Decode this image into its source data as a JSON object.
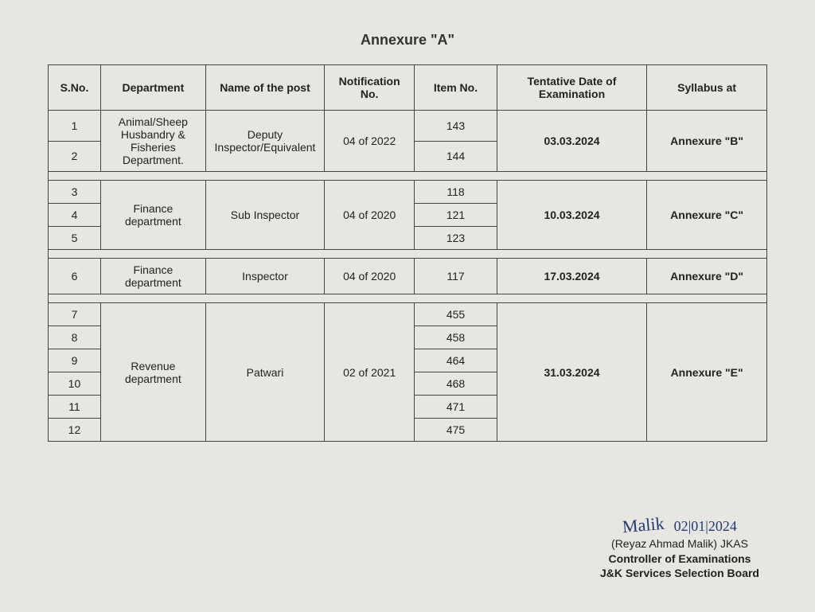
{
  "title": "Annexure \"A\"",
  "columns": [
    "S.No.",
    "Department",
    "Name of the post",
    "Notification No.",
    "Item No.",
    "Tentative Date of Examination",
    "Syllabus at"
  ],
  "groups": [
    {
      "department": "Animal/Sheep Husbandry & Fisheries Department.",
      "post": "Deputy Inspector/Equivalent",
      "notification": "04 of 2022",
      "date": "03.03.2024",
      "syllabus": "Annexure \"B\"",
      "rows": [
        {
          "sno": "1",
          "item": "143"
        },
        {
          "sno": "2",
          "item": "144"
        }
      ]
    },
    {
      "department": "Finance department",
      "post": "Sub Inspector",
      "notification": "04 of 2020",
      "date": "10.03.2024",
      "syllabus": "Annexure \"C\"",
      "rows": [
        {
          "sno": "3",
          "item": "118"
        },
        {
          "sno": "4",
          "item": "121"
        },
        {
          "sno": "5",
          "item": "123"
        }
      ]
    },
    {
      "department": "Finance department",
      "post": "Inspector",
      "notification": "04 of 2020",
      "date": "17.03.2024",
      "syllabus": "Annexure \"D\"",
      "rows": [
        {
          "sno": "6",
          "item": "117"
        }
      ]
    },
    {
      "department": "Revenue department",
      "post": "Patwari",
      "notification": "02 of 2021",
      "date": "31.03.2024",
      "syllabus": "Annexure \"E\"",
      "rows": [
        {
          "sno": "7",
          "item": "455"
        },
        {
          "sno": "8",
          "item": "458"
        },
        {
          "sno": "9",
          "item": "464"
        },
        {
          "sno": "10",
          "item": "468"
        },
        {
          "sno": "11",
          "item": "471"
        },
        {
          "sno": "12",
          "item": "475"
        }
      ]
    }
  ],
  "signature": {
    "name_line": "(Reyaz Ahmad Malik) JKAS",
    "title_line": "Controller of Examinations",
    "org_line": "J&K Services Selection Board",
    "date": "02|01|2024"
  }
}
